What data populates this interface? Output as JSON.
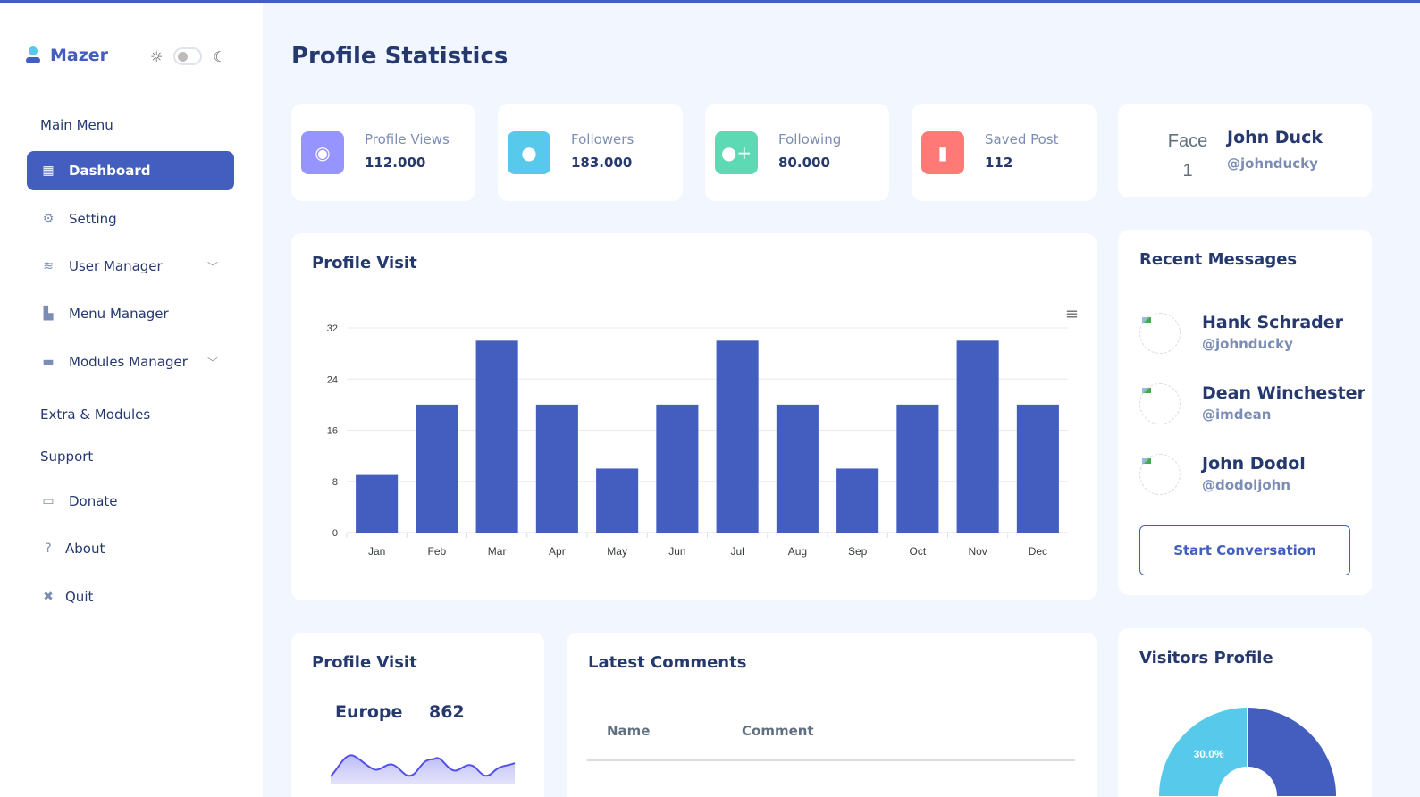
{
  "sidebar": {
    "brand": "Mazer",
    "main_menu": "Main Menu",
    "items": [
      {
        "label": "Dashboard",
        "icon": "grid-icon",
        "active": true
      },
      {
        "label": "Setting",
        "icon": "gears-icon"
      },
      {
        "label": "User Manager",
        "icon": "stack-icon",
        "expandable": true
      },
      {
        "label": "Menu Manager",
        "icon": "layout-icon"
      },
      {
        "label": "Modules Manager",
        "icon": "archive-icon",
        "expandable": true
      }
    ],
    "extra": "Extra & Modules",
    "support": "Support",
    "extra_items": [
      {
        "label": "Donate",
        "icon": "cash-icon",
        "glyph": "▭"
      },
      {
        "label": "About",
        "icon": "question-icon",
        "glyph": "?"
      },
      {
        "label": "Quit",
        "icon": "x-icon",
        "glyph": "✖"
      }
    ]
  },
  "page_title": "Profile Statistics",
  "stats": [
    {
      "label": "Profile Views",
      "value": "112.000",
      "color": "#9694ff",
      "icon": "eye-icon"
    },
    {
      "label": "Followers",
      "value": "183.000",
      "color": "#57caeb",
      "icon": "user-icon"
    },
    {
      "label": "Following",
      "value": "80.000",
      "color": "#5ddab4",
      "icon": "user-plus-icon"
    },
    {
      "label": "Saved Post",
      "value": "112",
      "color": "#ff7976",
      "icon": "bookmark-icon"
    }
  ],
  "profile": {
    "avatar_alt": "Face 1",
    "name": "John Duck",
    "handle": "@johnducky"
  },
  "profile_visit": {
    "title": "Profile Visit"
  },
  "chart_data": [
    {
      "type": "bar",
      "categories": [
        "Jan",
        "Feb",
        "Mar",
        "Apr",
        "May",
        "Jun",
        "Jul",
        "Aug",
        "Sep",
        "Oct",
        "Nov",
        "Dec"
      ],
      "values": [
        9,
        20,
        30,
        20,
        10,
        20,
        30,
        20,
        10,
        20,
        30,
        20
      ],
      "ylim": [
        0,
        32
      ],
      "yticks": [
        0,
        8,
        16,
        24,
        32
      ],
      "grid": true,
      "color": "#435ebe"
    },
    {
      "type": "pie",
      "donut": true,
      "slices": [
        {
          "label": "30.0%",
          "value": 30,
          "color": "#57caeb"
        },
        {
          "value": 70,
          "color": "#435ebe"
        }
      ]
    }
  ],
  "recent_messages": {
    "title": "Recent Messages",
    "items": [
      {
        "name": "Hank Schrader",
        "handle": "@johnducky"
      },
      {
        "name": "Dean Winchester",
        "handle": "@imdean"
      },
      {
        "name": "John Dodol",
        "handle": "@dodoljohn"
      }
    ],
    "button": "Start Conversation"
  },
  "region_visit": {
    "title": "Profile Visit",
    "region": "Europe",
    "value": "862"
  },
  "comments": {
    "title": "Latest Comments",
    "columns": [
      "Name",
      "Comment"
    ]
  },
  "visitors": {
    "title": "Visitors Profile"
  }
}
